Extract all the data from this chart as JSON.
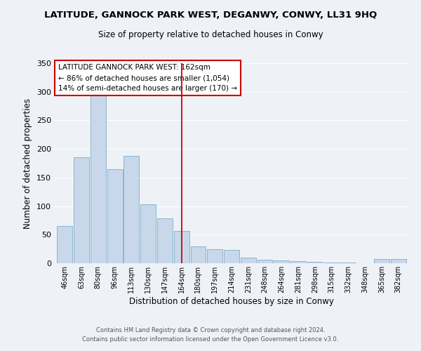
{
  "title": "LATITUDE, GANNOCK PARK WEST, DEGANWY, CONWY, LL31 9HQ",
  "subtitle": "Size of property relative to detached houses in Conwy",
  "xlabel": "Distribution of detached houses by size in Conwy",
  "ylabel": "Number of detached properties",
  "bar_color": "#c8d8ea",
  "bar_edge_color": "#8ab4cc",
  "categories": [
    "46sqm",
    "63sqm",
    "80sqm",
    "96sqm",
    "113sqm",
    "130sqm",
    "147sqm",
    "164sqm",
    "180sqm",
    "197sqm",
    "214sqm",
    "231sqm",
    "248sqm",
    "264sqm",
    "281sqm",
    "298sqm",
    "315sqm",
    "332sqm",
    "348sqm",
    "365sqm",
    "382sqm"
  ],
  "values": [
    65,
    185,
    293,
    164,
    188,
    103,
    78,
    57,
    30,
    24,
    23,
    10,
    6,
    5,
    4,
    2,
    1,
    1,
    0,
    7,
    7
  ],
  "ylim": [
    0,
    350
  ],
  "yticks": [
    0,
    50,
    100,
    150,
    200,
    250,
    300,
    350
  ],
  "vline_x": 7,
  "vline_color": "#cc0000",
  "legend_text_line1": "LATITUDE GANNOCK PARK WEST: 162sqm",
  "legend_text_line2": "← 86% of detached houses are smaller (1,054)",
  "legend_text_line3": "14% of semi-detached houses are larger (170) →",
  "footer_line1": "Contains HM Land Registry data © Crown copyright and database right 2024.",
  "footer_line2": "Contains public sector information licensed under the Open Government Licence v3.0.",
  "background_color": "#eef2f7",
  "grid_color": "#ffffff"
}
